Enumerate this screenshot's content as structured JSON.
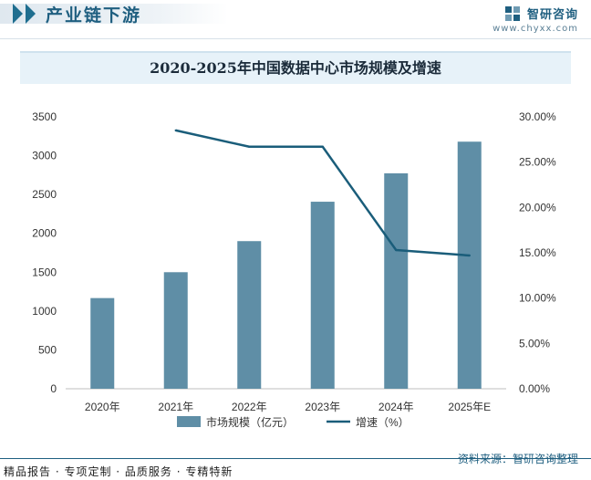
{
  "header": {
    "section_title": "产业链下游",
    "brand_name": "智研咨询",
    "brand_url": "www.chyxx.com"
  },
  "footer": {
    "tagline": "精品报告 · 专项定制 · 品质服务 · 专精特新",
    "source": "资料来源：智研咨询整理"
  },
  "colors": {
    "bar": "#5f8ea6",
    "line": "#1a5d7a",
    "accent": "#1f5f80"
  },
  "chart_data": {
    "type": "bar",
    "title": "2020-2025年中国数据中心市场规模及增速",
    "categories": [
      "2020年",
      "2021年",
      "2022年",
      "2023年",
      "2024年",
      "2025年E"
    ],
    "series": [
      {
        "name": "市场规模（亿元）",
        "type": "bar",
        "axis": "left",
        "values": [
          1167,
          1500,
          1900,
          2407,
          2773,
          3180
        ]
      },
      {
        "name": "增速（%）",
        "type": "line",
        "axis": "right",
        "values": [
          null,
          28.5,
          26.7,
          26.7,
          15.3,
          14.7
        ]
      }
    ],
    "y_left": {
      "min": 0,
      "max": 3500,
      "ticks": [
        "0",
        "500",
        "1000",
        "1500",
        "2000",
        "2500",
        "3000",
        "3500"
      ]
    },
    "y_right": {
      "min": 0,
      "max": 30,
      "ticks": [
        "0.00%",
        "5.00%",
        "10.00%",
        "15.00%",
        "20.00%",
        "25.00%",
        "30.00%"
      ]
    },
    "legend_position": "bottom",
    "grid": false
  }
}
